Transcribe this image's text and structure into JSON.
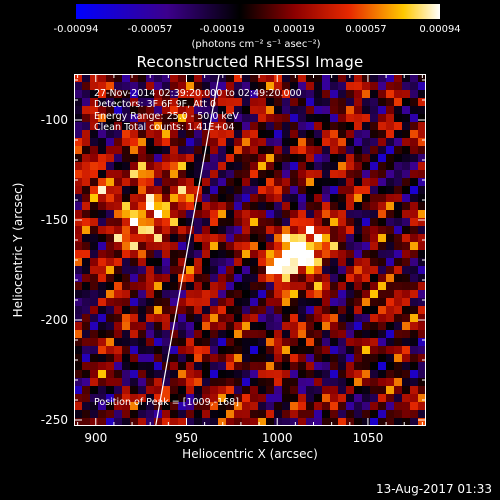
{
  "colorbar": {
    "ticks": [
      "-0.00094",
      "-0.00057",
      "-0.00019",
      "0.00019",
      "0.00057",
      "0.00094"
    ],
    "unit_label": "(photons cm⁻² s⁻¹ asec⁻²)",
    "range": [
      -0.00094,
      0.00094
    ]
  },
  "title": "Reconstructed RHESSI Image",
  "annotations": {
    "time": "27-Nov-2014 02:39:20.000 to 02:49:20.000",
    "detectors": "Detectors: 3F 6F 9F, Att 0",
    "energy": "Energy Range: 25.0 - 50.0 keV",
    "clean": "Clean     Total counts: 1.41E+04",
    "peak": "Position of Peak = [1009,-168]"
  },
  "footer": {
    "date": "13-Aug-2017 01:33"
  },
  "chart_data": {
    "type": "heatmap",
    "title": "Reconstructed RHESSI Image",
    "xlabel": "Heliocentric X (arcsec)",
    "ylabel": "Heliocentric Y (arcsec)",
    "xlim": [
      888,
      1082
    ],
    "ylim": [
      -253,
      -77
    ],
    "xticks": [
      900,
      950,
      1000,
      1050
    ],
    "yticks": [
      -100,
      -150,
      -200,
      -250
    ],
    "peak": [
      1009,
      -168
    ],
    "limb_line": [
      [
        933,
        -253
      ],
      [
        968,
        -77
      ]
    ],
    "colormap": "blue-black-red-yellow-white"
  }
}
